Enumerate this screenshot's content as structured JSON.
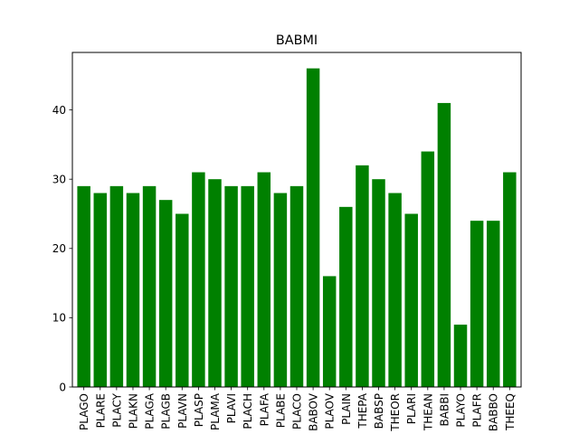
{
  "chart_data": {
    "type": "bar",
    "title": "BABMI",
    "xlabel": "",
    "ylabel": "",
    "categories": [
      "PLAGO",
      "PLARE",
      "PLACY",
      "PLAKN",
      "PLAGA",
      "PLAGB",
      "PLAVN",
      "PLASP",
      "PLAMA",
      "PLAVI",
      "PLACH",
      "PLAFA",
      "PLABE",
      "PLACO",
      "BABOV",
      "PLAOV",
      "PLAIN",
      "THEPA",
      "BABSP",
      "THEOR",
      "PLARI",
      "THEAN",
      "BABBI",
      "PLAYO",
      "PLAFR",
      "BABBO",
      "THEEQ"
    ],
    "values": [
      29,
      28,
      29,
      28,
      29,
      27,
      25,
      31,
      30,
      29,
      29,
      31,
      28,
      29,
      46,
      16,
      26,
      32,
      30,
      28,
      25,
      34,
      41,
      9,
      24,
      24,
      31
    ],
    "ylim": [
      0,
      48.3
    ],
    "yticks": [
      0,
      10,
      20,
      30,
      40
    ],
    "bar_color": "#008000",
    "grid": false,
    "legend": "none"
  }
}
